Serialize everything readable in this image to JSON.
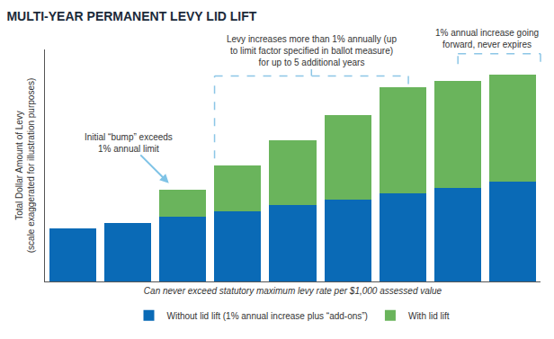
{
  "chart_data": {
    "type": "bar",
    "title": "MULTI-YEAR PERMANENT LEVY LID LIFT",
    "x_label": "Can never exceed statutory maximum levy rate per $1,000 assessed value",
    "y_label": "Total Dollar Amount of Levy\n(scale exaggerated for illustration purposes)",
    "categories": [
      null,
      null,
      null,
      null,
      null,
      null,
      null,
      null,
      null
    ],
    "series": [
      {
        "name": "Without lid lift (1% annual increase plus “add-ons”)",
        "color": "#0a6ab6",
        "values": [
          64,
          71,
          78,
          85,
          92,
          99,
          106,
          113,
          120
        ]
      },
      {
        "name": "With lid lift",
        "color": "#6ab45c",
        "values": [
          null,
          null,
          33,
          55,
          78,
          102,
          128,
          129,
          130
        ]
      }
    ],
    "stacked": true,
    "ylim": [
      0,
      280
    ],
    "yticks": [],
    "tick_labels": false,
    "grid": false,
    "legend": "bottom",
    "data_labels": false,
    "annotations": [
      "Initial “bump” exceeds\n1% annual limit",
      "Levy increases more than 1% annually (up\nto limit factor specified in ballot measure)\nfor up to 5 additional years",
      "1% annual increase going\nforward, never expires"
    ]
  }
}
